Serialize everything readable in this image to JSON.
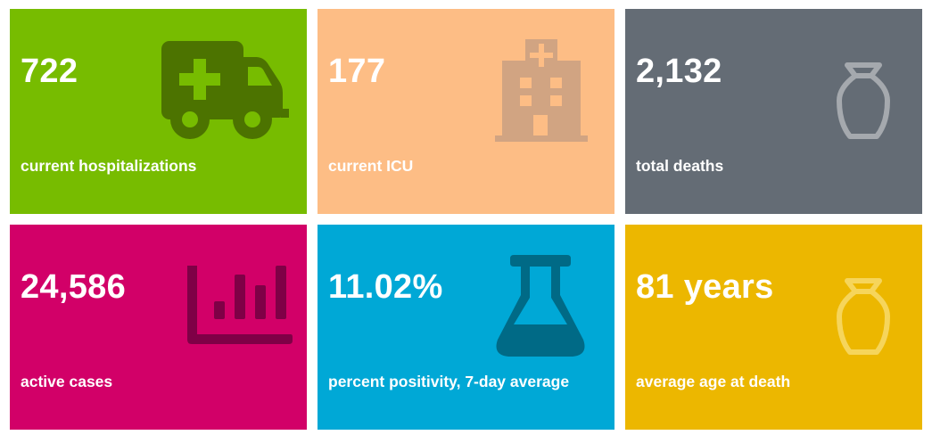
{
  "tiles": [
    {
      "value": "722",
      "label": "current hospitalizations",
      "icon": "ambulance-icon",
      "color": "#77bc00",
      "icon_color": "#4c7300"
    },
    {
      "value": "177",
      "label": "current ICU",
      "icon": "hospital-icon",
      "color": "#fdbd85",
      "icon_color": "#d1a482"
    },
    {
      "value": "2,132",
      "label": "total deaths",
      "icon": "urn-icon",
      "color": "#646c75",
      "icon_color": "#a5a9ae"
    },
    {
      "value": "24,586",
      "label": "active cases",
      "icon": "bar-chart-icon",
      "color": "#d20068",
      "icon_color": "#7f0046"
    },
    {
      "value": "11.02%",
      "label": "percent positivity, 7-day average",
      "icon": "flask-icon",
      "color": "#00a8d6",
      "icon_color": "#006a86"
    },
    {
      "value": "81 years",
      "label": "average age at death",
      "icon": "urn-icon",
      "color": "#ecb700",
      "icon_color": "#f6d55b"
    }
  ]
}
